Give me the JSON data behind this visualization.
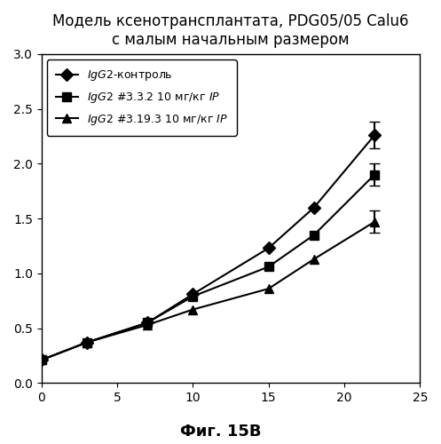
{
  "title": "Модель ксенотрансплантата, PDG05/05 Calu6\nс малым начальным размером",
  "caption": "Фиг. 15В",
  "xlim": [
    0,
    25
  ],
  "ylim": [
    0.0,
    3.0
  ],
  "xticks": [
    0,
    5,
    10,
    15,
    20,
    25
  ],
  "yticks": [
    0.0,
    0.5,
    1.0,
    1.5,
    2.0,
    2.5,
    3.0
  ],
  "series": [
    {
      "label": "IgG2-контроль",
      "x": [
        0,
        3,
        7,
        10,
        15,
        18,
        22
      ],
      "y": [
        0.21,
        0.37,
        0.55,
        0.81,
        1.23,
        1.6,
        2.26
      ],
      "yerr": [
        0.0,
        0.0,
        0.0,
        0.0,
        0.0,
        0.0,
        0.12
      ],
      "marker": "D",
      "markersize": 7
    },
    {
      "label": "IgG2 #3.3.2 10 мг/кг IP",
      "x": [
        0,
        3,
        7,
        10,
        15,
        18,
        22
      ],
      "y": [
        0.21,
        0.37,
        0.55,
        0.79,
        1.06,
        1.35,
        1.9
      ],
      "yerr": [
        0.0,
        0.0,
        0.0,
        0.0,
        0.0,
        0.0,
        0.1
      ],
      "marker": "s",
      "markersize": 7
    },
    {
      "label": "IgG2 #3.19.3 10 мг/кг IP",
      "x": [
        0,
        3,
        7,
        10,
        15,
        18,
        22
      ],
      "y": [
        0.21,
        0.37,
        0.53,
        0.67,
        0.86,
        1.13,
        1.47
      ],
      "yerr": [
        0.0,
        0.0,
        0.0,
        0.0,
        0.0,
        0.0,
        0.1
      ],
      "marker": "^",
      "markersize": 7
    }
  ],
  "legend_labels_italic": [
    "$\\mathit{IgG2}$-контроль",
    "$\\mathit{IgG2}$ #3.3.2 10 мг/кг $\\mathit{IP}$",
    "$\\mathit{IgG2}$ #3.19.3 10 мг/кг $\\mathit{IP}$"
  ],
  "background_color": "#ffffff",
  "linewidth": 1.5,
  "color": "#000000",
  "capsize": 4
}
